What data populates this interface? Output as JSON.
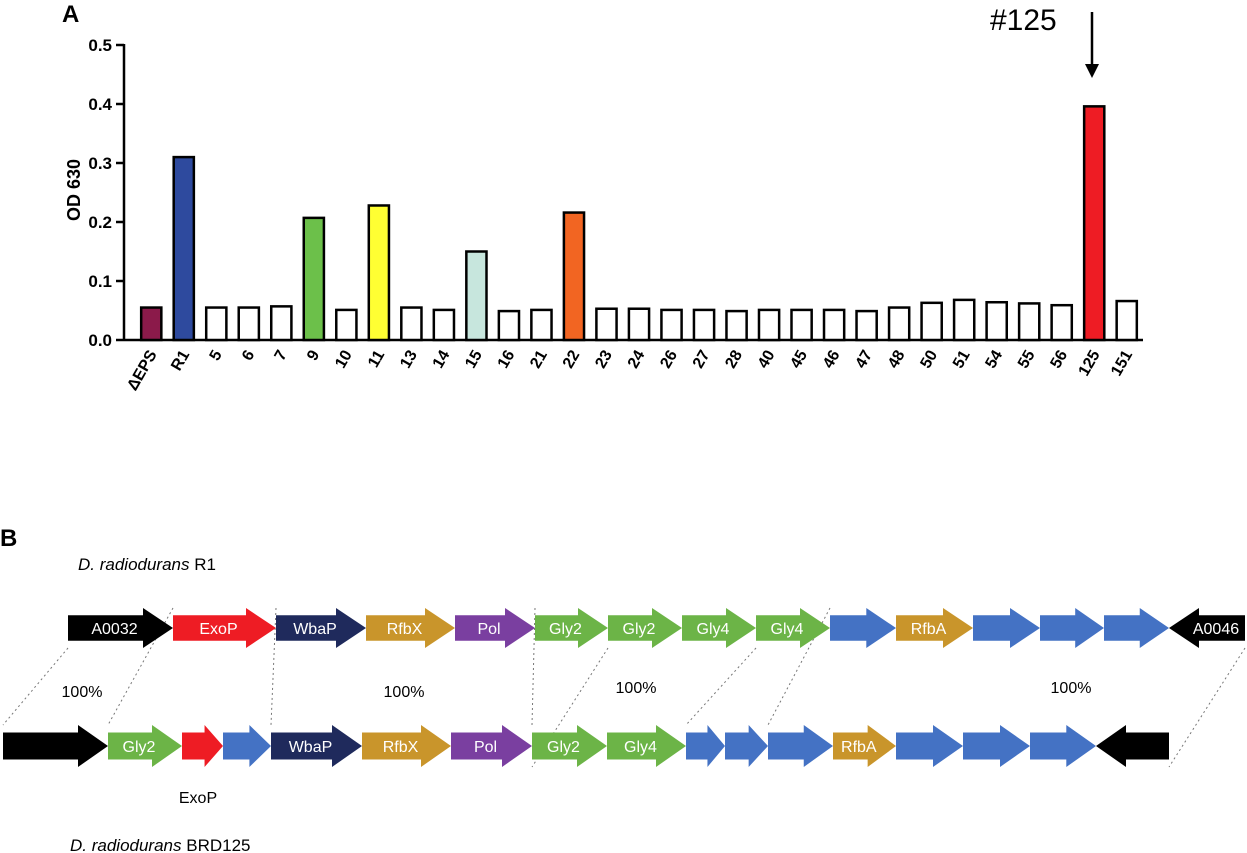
{
  "panel_a": {
    "label": "A",
    "annotation": "#125",
    "annotation_target": "125"
  },
  "panel_b": {
    "label": "B",
    "top_strain": {
      "italic": "D. radiodurans",
      "normal": " R1"
    },
    "bottom_strain": {
      "italic": "D. radiodurans",
      "normal": " BRD125"
    },
    "identity_labels": [
      "100%",
      "100%",
      "100%",
      "100%"
    ],
    "top_row": [
      {
        "label": "A0032",
        "color": "#000000",
        "text_color": "#ffffff",
        "dir": "right"
      },
      {
        "label": "ExoP",
        "color": "#ee1c24",
        "text_color": "#ffffff",
        "dir": "right"
      },
      {
        "label": "WbaP",
        "color": "#1f2a5c",
        "text_color": "#ffffff",
        "dir": "right"
      },
      {
        "label": "RfbX",
        "color": "#c9952b",
        "text_color": "#ffffff",
        "dir": "right"
      },
      {
        "label": "Pol",
        "color": "#7a3fa0",
        "text_color": "#ffffff",
        "dir": "right"
      },
      {
        "label": "Gly2",
        "color": "#6cb447",
        "text_color": "#ffffff",
        "dir": "right"
      },
      {
        "label": "Gly2",
        "color": "#6cb447",
        "text_color": "#ffffff",
        "dir": "right"
      },
      {
        "label": "Gly4",
        "color": "#6cb447",
        "text_color": "#ffffff",
        "dir": "right"
      },
      {
        "label": "Gly4",
        "color": "#6cb447",
        "text_color": "#ffffff",
        "dir": "right"
      },
      {
        "label": "",
        "color": "#4472c4",
        "text_color": "#ffffff",
        "dir": "right"
      },
      {
        "label": "RfbA",
        "color": "#c9952b",
        "text_color": "#ffffff",
        "dir": "right"
      },
      {
        "label": "",
        "color": "#4472c4",
        "text_color": "#ffffff",
        "dir": "right"
      },
      {
        "label": "",
        "color": "#4472c4",
        "text_color": "#ffffff",
        "dir": "right"
      },
      {
        "label": "",
        "color": "#4472c4",
        "text_color": "#ffffff",
        "dir": "right"
      },
      {
        "label": "A0046",
        "color": "#000000",
        "text_color": "#ffffff",
        "dir": "left"
      }
    ],
    "bottom_row": [
      {
        "label": "",
        "color": "#000000",
        "text_color": "#ffffff",
        "dir": "right"
      },
      {
        "label": "Gly2",
        "color": "#6cb447",
        "text_color": "#ffffff",
        "dir": "right"
      },
      {
        "label": "",
        "color": "#ee1c24",
        "text_color": "#ffffff",
        "dir": "right"
      },
      {
        "label": "",
        "color": "#4472c4",
        "text_color": "#ffffff",
        "dir": "right"
      },
      {
        "label": "WbaP",
        "color": "#1f2a5c",
        "text_color": "#ffffff",
        "dir": "right"
      },
      {
        "label": "RfbX",
        "color": "#c9952b",
        "text_color": "#ffffff",
        "dir": "right"
      },
      {
        "label": "Pol",
        "color": "#7a3fa0",
        "text_color": "#ffffff",
        "dir": "right"
      },
      {
        "label": "Gly2",
        "color": "#6cb447",
        "text_color": "#ffffff",
        "dir": "right"
      },
      {
        "label": "Gly4",
        "color": "#6cb447",
        "text_color": "#ffffff",
        "dir": "right"
      },
      {
        "label": "",
        "color": "#4472c4",
        "text_color": "#ffffff",
        "dir": "right"
      },
      {
        "label": "",
        "color": "#4472c4",
        "text_color": "#ffffff",
        "dir": "right"
      },
      {
        "label": "",
        "color": "#4472c4",
        "text_color": "#ffffff",
        "dir": "right"
      },
      {
        "label": "RfbA",
        "color": "#c9952b",
        "text_color": "#ffffff",
        "dir": "right"
      },
      {
        "label": "",
        "color": "#4472c4",
        "text_color": "#ffffff",
        "dir": "right"
      },
      {
        "label": "",
        "color": "#4472c4",
        "text_color": "#ffffff",
        "dir": "right"
      },
      {
        "label": "",
        "color": "#4472c4",
        "text_color": "#ffffff",
        "dir": "right"
      },
      {
        "label": "",
        "color": "#000000",
        "text_color": "#ffffff",
        "dir": "left"
      }
    ],
    "exop_label": "ExoP"
  },
  "chart_data": {
    "type": "bar",
    "title": "",
    "xlabel": "",
    "ylabel": "OD 630",
    "ylim": [
      0,
      0.5
    ],
    "yticks": [
      "0.0",
      "0.1",
      "0.2",
      "0.3",
      "0.4",
      "0.5"
    ],
    "categories": [
      "ΔEPS",
      "R1",
      "5",
      "6",
      "7",
      "9",
      "10",
      "11",
      "13",
      "14",
      "15",
      "16",
      "21",
      "22",
      "23",
      "24",
      "26",
      "27",
      "28",
      "40",
      "45",
      "46",
      "47",
      "48",
      "50",
      "51",
      "54",
      "55",
      "56",
      "125",
      "151"
    ],
    "values": [
      0.055,
      0.31,
      0.055,
      0.055,
      0.057,
      0.207,
      0.051,
      0.228,
      0.055,
      0.051,
      0.15,
      0.049,
      0.051,
      0.216,
      0.053,
      0.053,
      0.051,
      0.051,
      0.049,
      0.051,
      0.051,
      0.051,
      0.049,
      0.055,
      0.063,
      0.068,
      0.064,
      0.062,
      0.059,
      0.396,
      0.066
    ],
    "colors": [
      "#8b1a4a",
      "#2e4a9e",
      "#ffffff",
      "#ffffff",
      "#ffffff",
      "#6cc04a",
      "#ffffff",
      "#ffff33",
      "#ffffff",
      "#ffffff",
      "#c7e6dd",
      "#ffffff",
      "#ffffff",
      "#f26522",
      "#ffffff",
      "#ffffff",
      "#ffffff",
      "#ffffff",
      "#ffffff",
      "#ffffff",
      "#ffffff",
      "#ffffff",
      "#ffffff",
      "#ffffff",
      "#ffffff",
      "#ffffff",
      "#ffffff",
      "#ffffff",
      "#ffffff",
      "#ee1c24",
      "#ffffff"
    ],
    "grid": false,
    "legend": "none"
  }
}
